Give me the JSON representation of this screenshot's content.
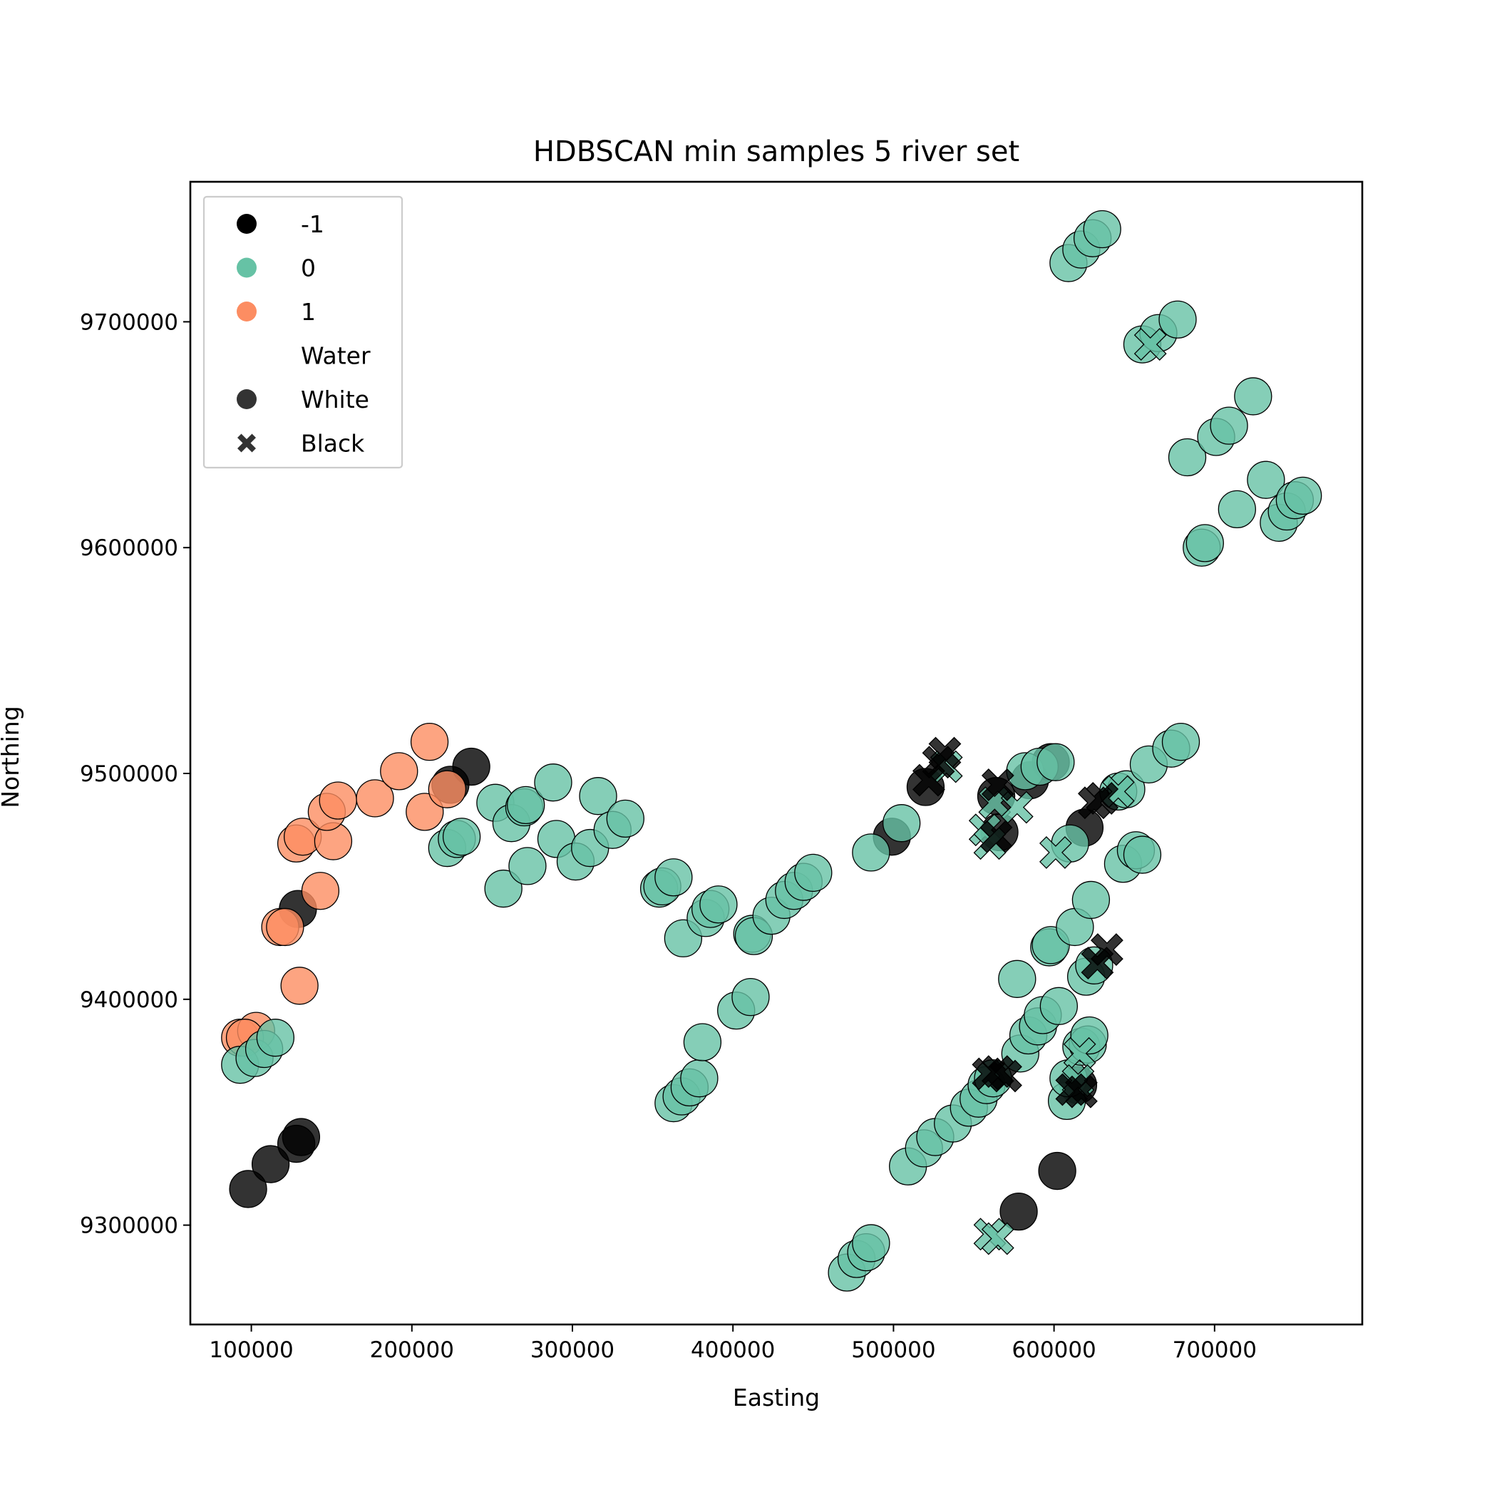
{
  "chart_data": {
    "type": "scatter",
    "title": "HDBSCAN min samples 5 river set",
    "xlabel": "Easting",
    "ylabel": "Northing",
    "xlim": [
      62000,
      792000
    ],
    "ylim": [
      9256000,
      9762000
    ],
    "xticks": [
      100000,
      200000,
      300000,
      400000,
      500000,
      600000,
      700000
    ],
    "yticks": [
      9300000,
      9400000,
      9500000,
      9600000,
      9700000
    ],
    "grid": false,
    "legend_placement": "upper-left",
    "colors": {
      "-1": "#000000",
      "0": "#66c2a5",
      "1": "#fc8d62"
    },
    "legend": [
      {
        "label": "-1",
        "kind": "hue",
        "color": "#000000",
        "marker": "circle"
      },
      {
        "label": "0",
        "kind": "hue",
        "color": "#66c2a5",
        "marker": "circle"
      },
      {
        "label": "1",
        "kind": "hue",
        "color": "#fc8d62",
        "marker": "circle"
      },
      {
        "label": "Water",
        "kind": "header"
      },
      {
        "label": "White",
        "kind": "style",
        "color": "#333333",
        "marker": "circle"
      },
      {
        "label": "Black",
        "kind": "style",
        "color": "#333333",
        "marker": "x"
      }
    ],
    "series": [
      {
        "cluster": "-1",
        "marker": "circle",
        "points": [
          [
            98000,
            9316000
          ],
          [
            112000,
            9327000
          ],
          [
            128000,
            9336000
          ],
          [
            131000,
            9339000
          ],
          [
            129000,
            9440000
          ],
          [
            237000,
            9503000
          ],
          [
            224000,
            9495000
          ],
          [
            499000,
            9472000
          ],
          [
            520000,
            9494000
          ],
          [
            564000,
            9490000
          ],
          [
            566000,
            9474000
          ],
          [
            585000,
            9497000
          ],
          [
            598000,
            9505000
          ],
          [
            619000,
            9476000
          ],
          [
            578000,
            9306000
          ],
          [
            602000,
            9324000
          ],
          [
            615000,
            9362000
          ]
        ]
      },
      {
        "cluster": "1",
        "marker": "circle",
        "points": [
          [
            93000,
            9383000
          ],
          [
            103000,
            9386000
          ],
          [
            96000,
            9383000
          ],
          [
            118000,
            9432000
          ],
          [
            121000,
            9432000
          ],
          [
            130000,
            9406000
          ],
          [
            128000,
            9469000
          ],
          [
            132000,
            9472000
          ],
          [
            151000,
            9470000
          ],
          [
            143000,
            9448000
          ],
          [
            147000,
            9483000
          ],
          [
            154000,
            9488000
          ],
          [
            177000,
            9489000
          ],
          [
            192000,
            9501000
          ],
          [
            208000,
            9483000
          ],
          [
            211000,
            9514000
          ],
          [
            222000,
            9493000
          ]
        ]
      },
      {
        "cluster": "0",
        "marker": "circle",
        "points": [
          [
            93000,
            9371000
          ],
          [
            102000,
            9374000
          ],
          [
            108000,
            9378000
          ],
          [
            115000,
            9383000
          ],
          [
            222000,
            9467000
          ],
          [
            228000,
            9471000
          ],
          [
            231000,
            9472000
          ],
          [
            252000,
            9487000
          ],
          [
            257000,
            9449000
          ],
          [
            262000,
            9478000
          ],
          [
            270000,
            9485000
          ],
          [
            271000,
            9486000
          ],
          [
            272000,
            9459000
          ],
          [
            288000,
            9496000
          ],
          [
            290000,
            9471000
          ],
          [
            302000,
            9461000
          ],
          [
            311000,
            9467000
          ],
          [
            316000,
            9490000
          ],
          [
            325000,
            9475000
          ],
          [
            333000,
            9480000
          ],
          [
            354000,
            9449000
          ],
          [
            356000,
            9450000
          ],
          [
            363000,
            9454000
          ],
          [
            363000,
            9354000
          ],
          [
            368000,
            9357000
          ],
          [
            373000,
            9361000
          ],
          [
            379000,
            9365000
          ],
          [
            369000,
            9427000
          ],
          [
            381000,
            9381000
          ],
          [
            383000,
            9436000
          ],
          [
            386000,
            9440000
          ],
          [
            391000,
            9442000
          ],
          [
            402000,
            9395000
          ],
          [
            411000,
            9401000
          ],
          [
            412000,
            9429000
          ],
          [
            413000,
            9428000
          ],
          [
            424000,
            9437000
          ],
          [
            432000,
            9444000
          ],
          [
            438000,
            9448000
          ],
          [
            444000,
            9452000
          ],
          [
            450000,
            9456000
          ],
          [
            471000,
            9279000
          ],
          [
            477000,
            9285000
          ],
          [
            483000,
            9288000
          ],
          [
            486000,
            9292000
          ],
          [
            486000,
            9465000
          ],
          [
            505000,
            9478000
          ],
          [
            509000,
            9326000
          ],
          [
            519000,
            9334000
          ],
          [
            526000,
            9339000
          ],
          [
            537000,
            9345000
          ],
          [
            547000,
            9352000
          ],
          [
            553000,
            9356000
          ],
          [
            558000,
            9362000
          ],
          [
            562000,
            9365000
          ],
          [
            577000,
            9409000
          ],
          [
            579000,
            9376000
          ],
          [
            584000,
            9384000
          ],
          [
            590000,
            9388000
          ],
          [
            593000,
            9393000
          ],
          [
            597000,
            9423000
          ],
          [
            598000,
            9424000
          ],
          [
            603000,
            9397000
          ],
          [
            608000,
            9355000
          ],
          [
            609000,
            9365000
          ],
          [
            613000,
            9432000
          ],
          [
            617000,
            9379000
          ],
          [
            621000,
            9380000
          ],
          [
            622000,
            9384000
          ],
          [
            623000,
            9444000
          ],
          [
            620000,
            9410000
          ],
          [
            625000,
            9415000
          ],
          [
            582000,
            9501000
          ],
          [
            591000,
            9503000
          ],
          [
            601000,
            9505000
          ],
          [
            610000,
            9469000
          ],
          [
            640000,
            9492000
          ],
          [
            645000,
            9493000
          ],
          [
            643000,
            9460000
          ],
          [
            651000,
            9466000
          ],
          [
            655000,
            9464000
          ],
          [
            659000,
            9504000
          ],
          [
            673000,
            9511000
          ],
          [
            679000,
            9514000
          ],
          [
            609000,
            9726000
          ],
          [
            617000,
            9732000
          ],
          [
            624000,
            9737000
          ],
          [
            630000,
            9741000
          ],
          [
            655000,
            9690000
          ],
          [
            665000,
            9695000
          ],
          [
            677000,
            9701000
          ],
          [
            683000,
            9640000
          ],
          [
            692000,
            9600000
          ],
          [
            694000,
            9602000
          ],
          [
            701000,
            9649000
          ],
          [
            709000,
            9654000
          ],
          [
            714000,
            9617000
          ],
          [
            724000,
            9667000
          ],
          [
            732000,
            9630000
          ],
          [
            740000,
            9611000
          ],
          [
            745000,
            9616000
          ],
          [
            750000,
            9621000
          ],
          [
            755000,
            9623000
          ]
        ]
      },
      {
        "cluster": "0",
        "marker": "x",
        "points": [
          [
            533000,
            9503000
          ],
          [
            557000,
            9475000
          ],
          [
            560000,
            9469000
          ],
          [
            563000,
            9487000
          ],
          [
            577000,
            9485000
          ],
          [
            601000,
            9465000
          ],
          [
            616000,
            9376000
          ],
          [
            615000,
            9364000
          ],
          [
            640000,
            9492000
          ],
          [
            660000,
            9690000
          ],
          [
            560000,
            9296000
          ],
          [
            565000,
            9294000
          ]
        ]
      },
      {
        "cluster": "-1",
        "marker": "x",
        "points": [
          [
            522000,
            9497000
          ],
          [
            528000,
            9505000
          ],
          [
            532000,
            9509000
          ],
          [
            565000,
            9495000
          ],
          [
            564000,
            9472000
          ],
          [
            559000,
            9367000
          ],
          [
            565000,
            9368000
          ],
          [
            570000,
            9366000
          ],
          [
            611000,
            9360000
          ],
          [
            617000,
            9359000
          ],
          [
            625000,
            9487000
          ],
          [
            630000,
            9489000
          ],
          [
            627000,
            9416000
          ],
          [
            633000,
            9422000
          ]
        ]
      }
    ]
  }
}
